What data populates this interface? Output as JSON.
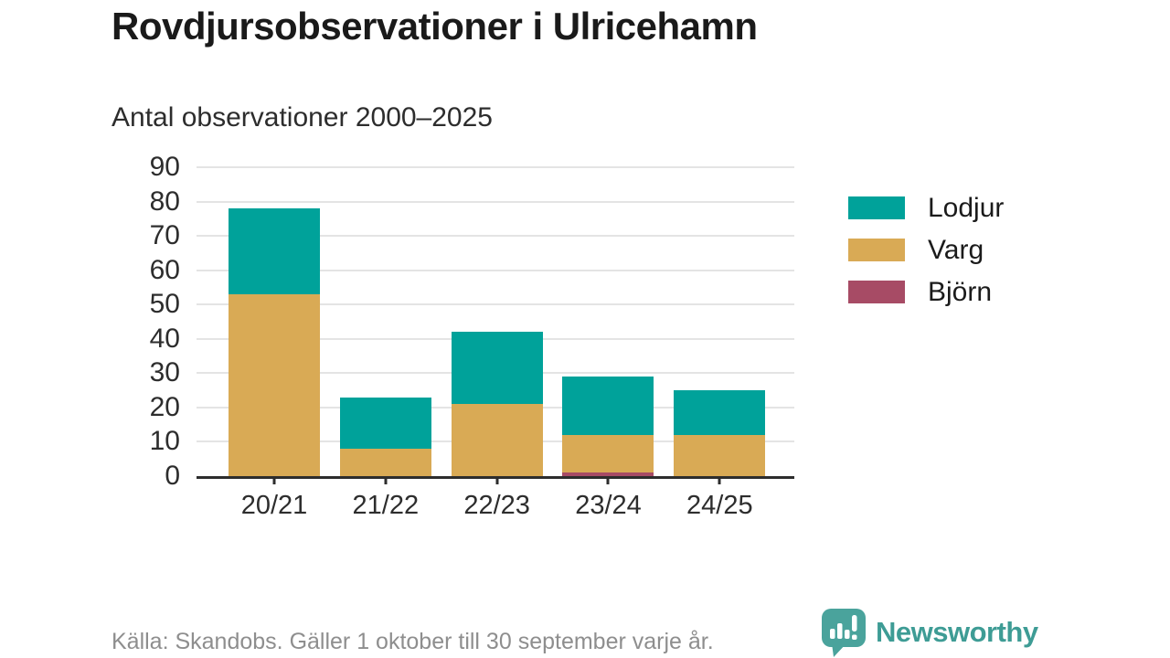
{
  "header": {
    "title": "Rovdjursobservationer i Ulricehamn",
    "subtitle": "Antal observationer 2000–2025"
  },
  "chart_data": {
    "type": "bar",
    "stacked": true,
    "title": "Rovdjursobservationer i Ulricehamn",
    "subtitle": "Antal observationer 2000–2025",
    "categories": [
      "20/21",
      "21/22",
      "22/23",
      "23/24",
      "24/25"
    ],
    "series": [
      {
        "name": "Lodjur",
        "color": "#00a29a",
        "values": [
          25,
          15,
          21,
          17,
          13
        ]
      },
      {
        "name": "Varg",
        "color": "#d9aa55",
        "values": [
          53,
          8,
          21,
          11,
          12
        ]
      },
      {
        "name": "Björn",
        "color": "#a74b65",
        "values": [
          0,
          0,
          0,
          1,
          0
        ]
      }
    ],
    "stack_order_bottom_to_top": [
      "Björn",
      "Varg",
      "Lodjur"
    ],
    "totals": [
      78,
      23,
      42,
      29,
      25
    ],
    "xlabel": "",
    "ylabel": "",
    "ylim": [
      0,
      90
    ],
    "yticks": [
      0,
      10,
      20,
      30,
      40,
      50,
      60,
      70,
      80,
      90
    ],
    "grid": true,
    "legend_position": "right"
  },
  "footer": {
    "source": "Källa: Skandobs. Gäller 1 oktober till 30 september varje år.",
    "logo": {
      "text": "Newsworthy",
      "icon": "bar-chart-speech-bubble-icon",
      "color": "#3e9c95",
      "icon_color": "#4aa39c"
    }
  }
}
